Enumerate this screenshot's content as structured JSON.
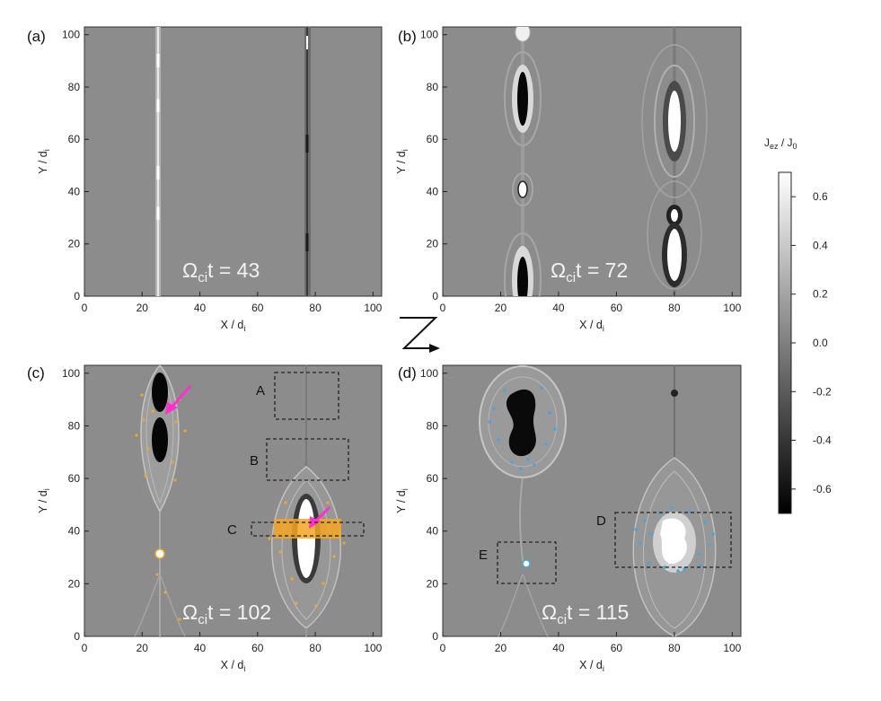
{
  "figure": {
    "x_axis_label": "X / d",
    "x_axis_sub": "i",
    "y_axis_label": "Y / d",
    "y_axis_sub": "i",
    "x_ticks": [
      "0",
      "20",
      "40",
      "60",
      "80",
      "100"
    ],
    "y_ticks": [
      "0",
      "20",
      "40",
      "60",
      "80",
      "100"
    ],
    "time_prefix": "Ω",
    "time_sub": "ci",
    "panels": [
      {
        "label": "(a)",
        "time_value": "t = 43"
      },
      {
        "label": "(b)",
        "time_value": "t = 72"
      },
      {
        "label": "(c)",
        "time_value": "t = 102"
      },
      {
        "label": "(d)",
        "time_value": "t = 115"
      }
    ],
    "boxes": {
      "A": "A",
      "B": "B",
      "C": "C",
      "D": "D",
      "E": "E"
    },
    "colorbar": {
      "title_main": "J",
      "title_sub1": "ez",
      "title_mid": " / J",
      "title_sub2": "0",
      "ticks": [
        "0.6",
        "0.4",
        "0.2",
        "0.0",
        "-0.2",
        "-0.4",
        "-0.6"
      ]
    },
    "colors": {
      "background_gray": "#8c8c8c",
      "orange_markers": "#f5a623",
      "blue_markers": "#3fa9e0",
      "magenta_arrow": "#ff2fd0"
    }
  }
}
